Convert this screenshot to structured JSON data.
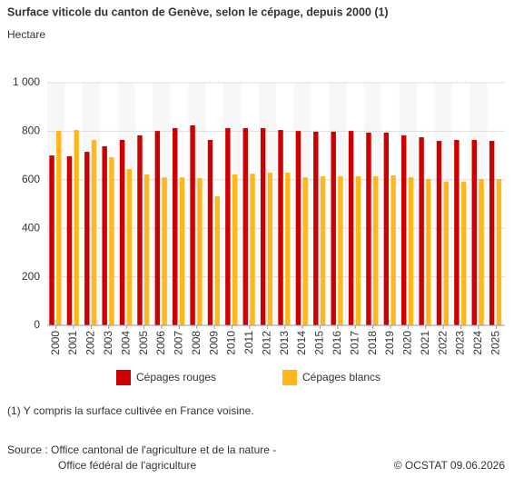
{
  "chart_data": {
    "type": "bar",
    "title": "Surface viticole du canton de Genève, selon le cépage, depuis 2000 (1)",
    "subtitle": "Hectare",
    "categories": [
      "2000",
      "2001",
      "2002",
      "2003",
      "2004",
      "2005",
      "2006",
      "2007",
      "2008",
      "2009",
      "2010",
      "2011",
      "2012",
      "2013",
      "2014",
      "2015",
      "2016",
      "2017",
      "2018",
      "2019",
      "2020",
      "2021",
      "2022",
      "2023",
      "2024",
      "2025"
    ],
    "series": [
      {
        "name": "Cépages rouges",
        "color": "#cc0000",
        "values": [
          700,
          697,
          715,
          738,
          764,
          783,
          801,
          813,
          824,
          764,
          813,
          813,
          813,
          805,
          801,
          798,
          798,
          801,
          794,
          794,
          783,
          775,
          760,
          764,
          764,
          760
        ]
      },
      {
        "name": "Cépages blancs",
        "color": "#ffb81c",
        "values": [
          801,
          805,
          764,
          693,
          644,
          622,
          610,
          610,
          607,
          532,
          622,
          625,
          629,
          629,
          610,
          614,
          614,
          614,
          614,
          618,
          610,
          603,
          592,
          592,
          603,
          603
        ]
      }
    ],
    "ylim": [
      0,
      1000
    ],
    "yticks": [
      0,
      200,
      400,
      600,
      800,
      {
        "value": 1000,
        "label": "1 000"
      }
    ],
    "grid": true
  },
  "footnote": "(1) Y compris la surface cultivée en France voisine.",
  "source": [
    "Source : Office cantonal de l'agriculture et de la nature -",
    "Office fédéral de l'agriculture"
  ],
  "copyright": "© OCSTAT 09.06.2026"
}
